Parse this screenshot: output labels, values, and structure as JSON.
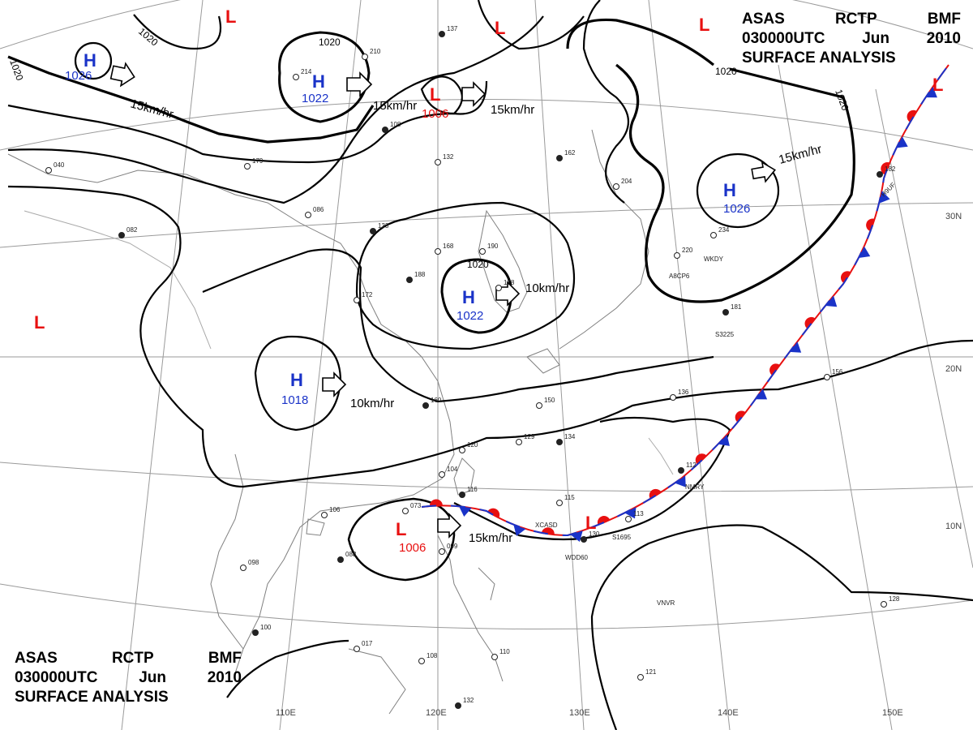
{
  "header": {
    "agency": "ASAS",
    "station": "RCTP",
    "unit": "BMF",
    "time": "030000UTC",
    "month": "Jun",
    "year": "2010",
    "product": "SURFACE ANALYSIS"
  },
  "grid": {
    "longitudes": [
      "110E",
      "120E",
      "130E",
      "140E",
      "150E"
    ],
    "latitudes": [
      "30N",
      "20N",
      "10N"
    ]
  },
  "colors": {
    "high": "#1a33c8",
    "low": "#e81010",
    "isobar": "#000000",
    "coast": "#777777",
    "grid": "#999999"
  },
  "isobar_labels": [
    "1020",
    "1020",
    "1020",
    "1020",
    "1020",
    "1020"
  ],
  "pressure_centers": [
    {
      "type": "H",
      "value": "1026",
      "motion": "15km/hr",
      "name": "high-nw"
    },
    {
      "type": "L",
      "value": "",
      "name": "low-north-1"
    },
    {
      "type": "H",
      "value": "1022",
      "motion": "15km/hr",
      "name": "high-north"
    },
    {
      "type": "L",
      "value": "1006",
      "motion": "15km/hr",
      "name": "low-north-2"
    },
    {
      "type": "L",
      "value": "",
      "name": "low-north-3"
    },
    {
      "type": "L",
      "value": "",
      "name": "low-ne-corner"
    },
    {
      "type": "L",
      "value": "",
      "name": "low-ne-front"
    },
    {
      "type": "H",
      "value": "1026",
      "motion": "15km/hr",
      "name": "high-east"
    },
    {
      "type": "H",
      "value": "1022",
      "motion": "10km/hr",
      "name": "high-yellow-sea"
    },
    {
      "type": "L",
      "value": "",
      "name": "low-west"
    },
    {
      "type": "H",
      "value": "1018",
      "motion": "10km/hr",
      "name": "high-south-china"
    },
    {
      "type": "L",
      "value": "1006",
      "motion": "15km/hr",
      "name": "low-south-china-sea"
    },
    {
      "type": "L",
      "value": "",
      "name": "low-front-wave"
    }
  ],
  "stations": [
    {
      "code": "WKDY"
    },
    {
      "code": "A8CP6"
    },
    {
      "code": "S3225"
    },
    {
      "code": "H9UF"
    },
    {
      "code": "NMRY"
    },
    {
      "code": "XCASD"
    },
    {
      "code": "WDD60"
    },
    {
      "code": "S1695"
    },
    {
      "code": "VNVR"
    }
  ],
  "station_values": [
    "137",
    "210",
    "214",
    "108",
    "179",
    "132",
    "162",
    "204",
    "086",
    "133",
    "190",
    "168",
    "188",
    "178",
    "172",
    "160",
    "150",
    "129",
    "134",
    "120",
    "104",
    "116",
    "073",
    "106",
    "088",
    "098",
    "099",
    "130",
    "115",
    "113",
    "112",
    "136",
    "156",
    "181",
    "220",
    "234",
    "182",
    "128",
    "121",
    "100",
    "017",
    "108",
    "132",
    "110",
    "040",
    "082"
  ]
}
